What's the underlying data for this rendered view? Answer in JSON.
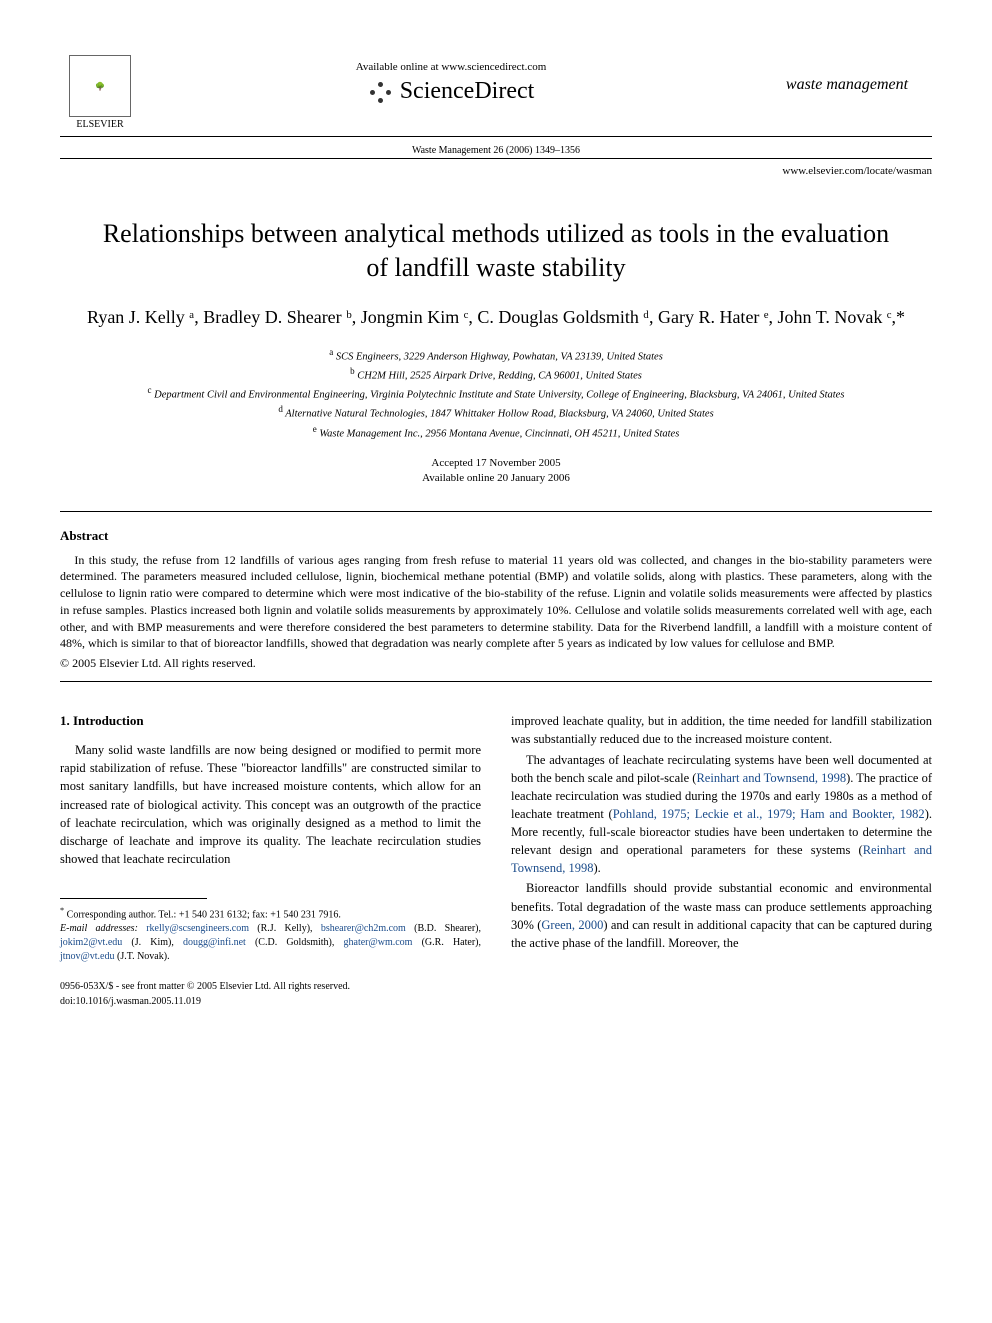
{
  "header": {
    "availableOnline": "Available online at www.sciencedirect.com",
    "scienceDirect": "ScienceDirect",
    "journalRef": "Waste Management 26 (2006) 1349–1356",
    "locateUrl": "www.elsevier.com/locate/wasman",
    "elsevierLabel": "ELSEVIER",
    "journalLogoText": "waste management"
  },
  "title": "Relationships between analytical methods utilized as tools in the evaluation of landfill waste stability",
  "authors": "Ryan J. Kelly ᵃ, Bradley D. Shearer ᵇ, Jongmin Kim ᶜ, C. Douglas Goldsmith ᵈ, Gary R. Hater ᵉ, John T. Novak ᶜ,*",
  "affiliations": {
    "a": "SCS Engineers, 3229 Anderson Highway, Powhatan, VA 23139, United States",
    "b": "CH2M Hill, 2525 Airpark Drive, Redding, CA 96001, United States",
    "c": "Department Civil and Environmental Engineering, Virginia Polytechnic Institute and State University, College of Engineering, Blacksburg, VA 24061, United States",
    "d": "Alternative Natural Technologies, 1847 Whittaker Hollow Road, Blacksburg, VA 24060, United States",
    "e": "Waste Management Inc., 2956 Montana Avenue, Cincinnati, OH 45211, United States"
  },
  "dates": {
    "accepted": "Accepted 17 November 2005",
    "online": "Available online 20 January 2006"
  },
  "abstract": {
    "heading": "Abstract",
    "text": "In this study, the refuse from 12 landfills of various ages ranging from fresh refuse to material 11 years old was collected, and changes in the bio-stability parameters were determined. The parameters measured included cellulose, lignin, biochemical methane potential (BMP) and volatile solids, along with plastics. These parameters, along with the cellulose to lignin ratio were compared to determine which were most indicative of the bio-stability of the refuse. Lignin and volatile solids measurements were affected by plastics in refuse samples. Plastics increased both lignin and volatile solids measurements by approximately 10%. Cellulose and volatile solids measurements correlated well with age, each other, and with BMP measurements and were therefore considered the best parameters to determine stability. Data for the Riverbend landfill, a landfill with a moisture content of 48%, which is similar to that of bioreactor landfills, showed that degradation was nearly complete after 5 years as indicated by low values for cellulose and BMP.",
    "copyright": "© 2005 Elsevier Ltd. All rights reserved."
  },
  "body": {
    "introHeading": "1. Introduction",
    "col1p1": "Many solid waste landfills are now being designed or modified to permit more rapid stabilization of refuse. These \"bioreactor landfills\" are constructed similar to most sanitary landfills, but have increased moisture contents, which allow for an increased rate of biological activity. This concept was an outgrowth of the practice of leachate recirculation, which was originally designed as a method to limit the discharge of leachate and improve its quality. The leachate recirculation studies showed that leachate recirculation",
    "col2p1a": "improved leachate quality, but in addition, the time needed for landfill stabilization was substantially reduced due to the increased moisture content.",
    "col2p2a": "The advantages of leachate recirculating systems have been well documented at both the bench scale and pilot-scale (",
    "col2p2ref1": "Reinhart and Townsend, 1998",
    "col2p2b": "). The practice of leachate recirculation was studied during the 1970s and early 1980s as a method of leachate treatment (",
    "col2p2ref2": "Pohland, 1975; Leckie et al., 1979; Ham and Bookter, 1982",
    "col2p2c": "). More recently, full-scale bioreactor studies have been undertaken to determine the relevant design and operational parameters for these systems (",
    "col2p2ref3": "Reinhart and Townsend, 1998",
    "col2p2d": ").",
    "col2p3a": "Bioreactor landfills should provide substantial economic and environmental benefits. Total degradation of the waste mass can produce settlements approaching 30% (",
    "col2p3ref1": "Green, 2000",
    "col2p3b": ") and can result in additional capacity that can be captured during the active phase of the landfill. Moreover, the"
  },
  "footnotes": {
    "corr": "Corresponding author. Tel.: +1 540 231 6132; fax: +1 540 231 7916.",
    "emailsLabel": "E-mail addresses:",
    "emails": [
      {
        "email": "rkelly@scsengineers.com",
        "name": "(R.J. Kelly)"
      },
      {
        "email": "bshearer@ch2m.com",
        "name": "(B.D. Shearer)"
      },
      {
        "email": "jokim2@vt.edu",
        "name": "(J. Kim)"
      },
      {
        "email": "dougg@infi.net",
        "name": "(C.D. Goldsmith)"
      },
      {
        "email": "ghater@wm.com",
        "name": "(G.R. Hater)"
      },
      {
        "email": "jtnov@vt.edu",
        "name": "(J.T. Novak)"
      }
    ]
  },
  "footer": {
    "line1": "0956-053X/$ - see front matter © 2005 Elsevier Ltd. All rights reserved.",
    "line2": "doi:10.1016/j.wasman.2005.11.019"
  }
}
